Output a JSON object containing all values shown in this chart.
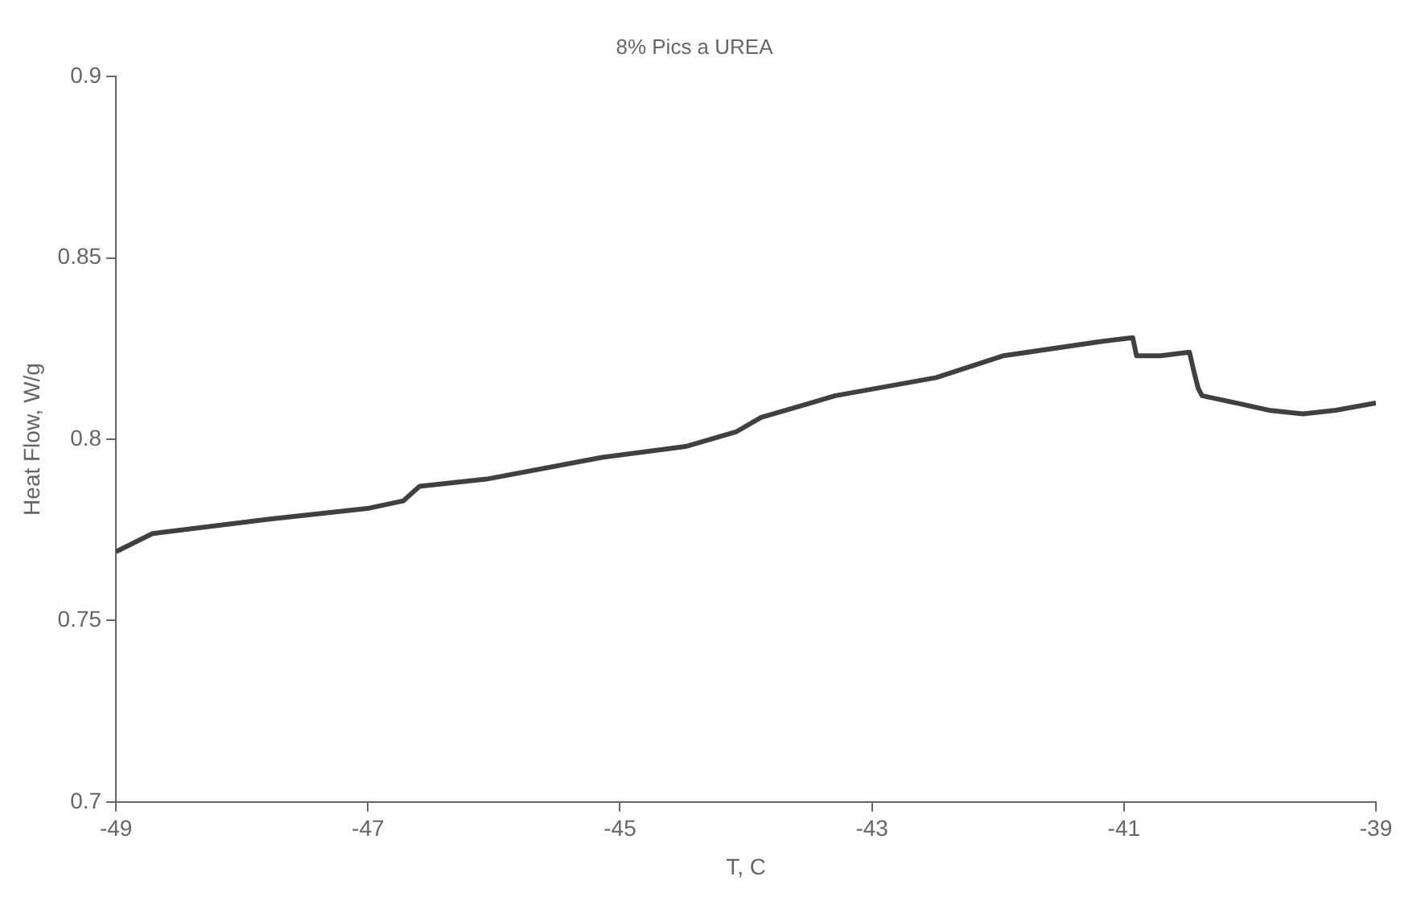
{
  "chart_data": {
    "type": "line",
    "title": "8% Pics a UREA",
    "xlabel": "T, C",
    "ylabel": "Heat Flow, W/g",
    "x": [
      -49,
      -48.71,
      -47.78,
      -46.99,
      -46.72,
      -46.59,
      -46.06,
      -45.14,
      -44.48,
      -44.08,
      -43.88,
      -43.29,
      -42.49,
      -41.96,
      -41.17,
      -40.93,
      -40.9,
      -40.71,
      -40.48,
      -40.44,
      -40.41,
      -40.38,
      -40.11,
      -39.85,
      -39.58,
      -39.32,
      -39
    ],
    "series": [
      {
        "color": "#404040",
        "values": [
          0.769,
          0.774,
          0.778,
          0.781,
          0.783,
          0.787,
          0.789,
          0.795,
          0.798,
          0.802,
          0.806,
          0.812,
          0.817,
          0.823,
          0.827,
          0.828,
          0.823,
          0.823,
          0.824,
          0.818,
          0.814,
          0.812,
          0.81,
          0.808,
          0.807,
          0.808,
          0.81
        ]
      }
    ],
    "xlim": [
      -49,
      -39
    ],
    "xticks": [
      -49,
      -47,
      -45,
      -43,
      -41,
      -39
    ],
    "ylim": [
      0.7,
      0.9
    ],
    "yticks": [
      0.7,
      0.75,
      0.8,
      0.85,
      0.9
    ],
    "grid": false,
    "legend": false,
    "marker": "none",
    "line_style": "solid"
  }
}
